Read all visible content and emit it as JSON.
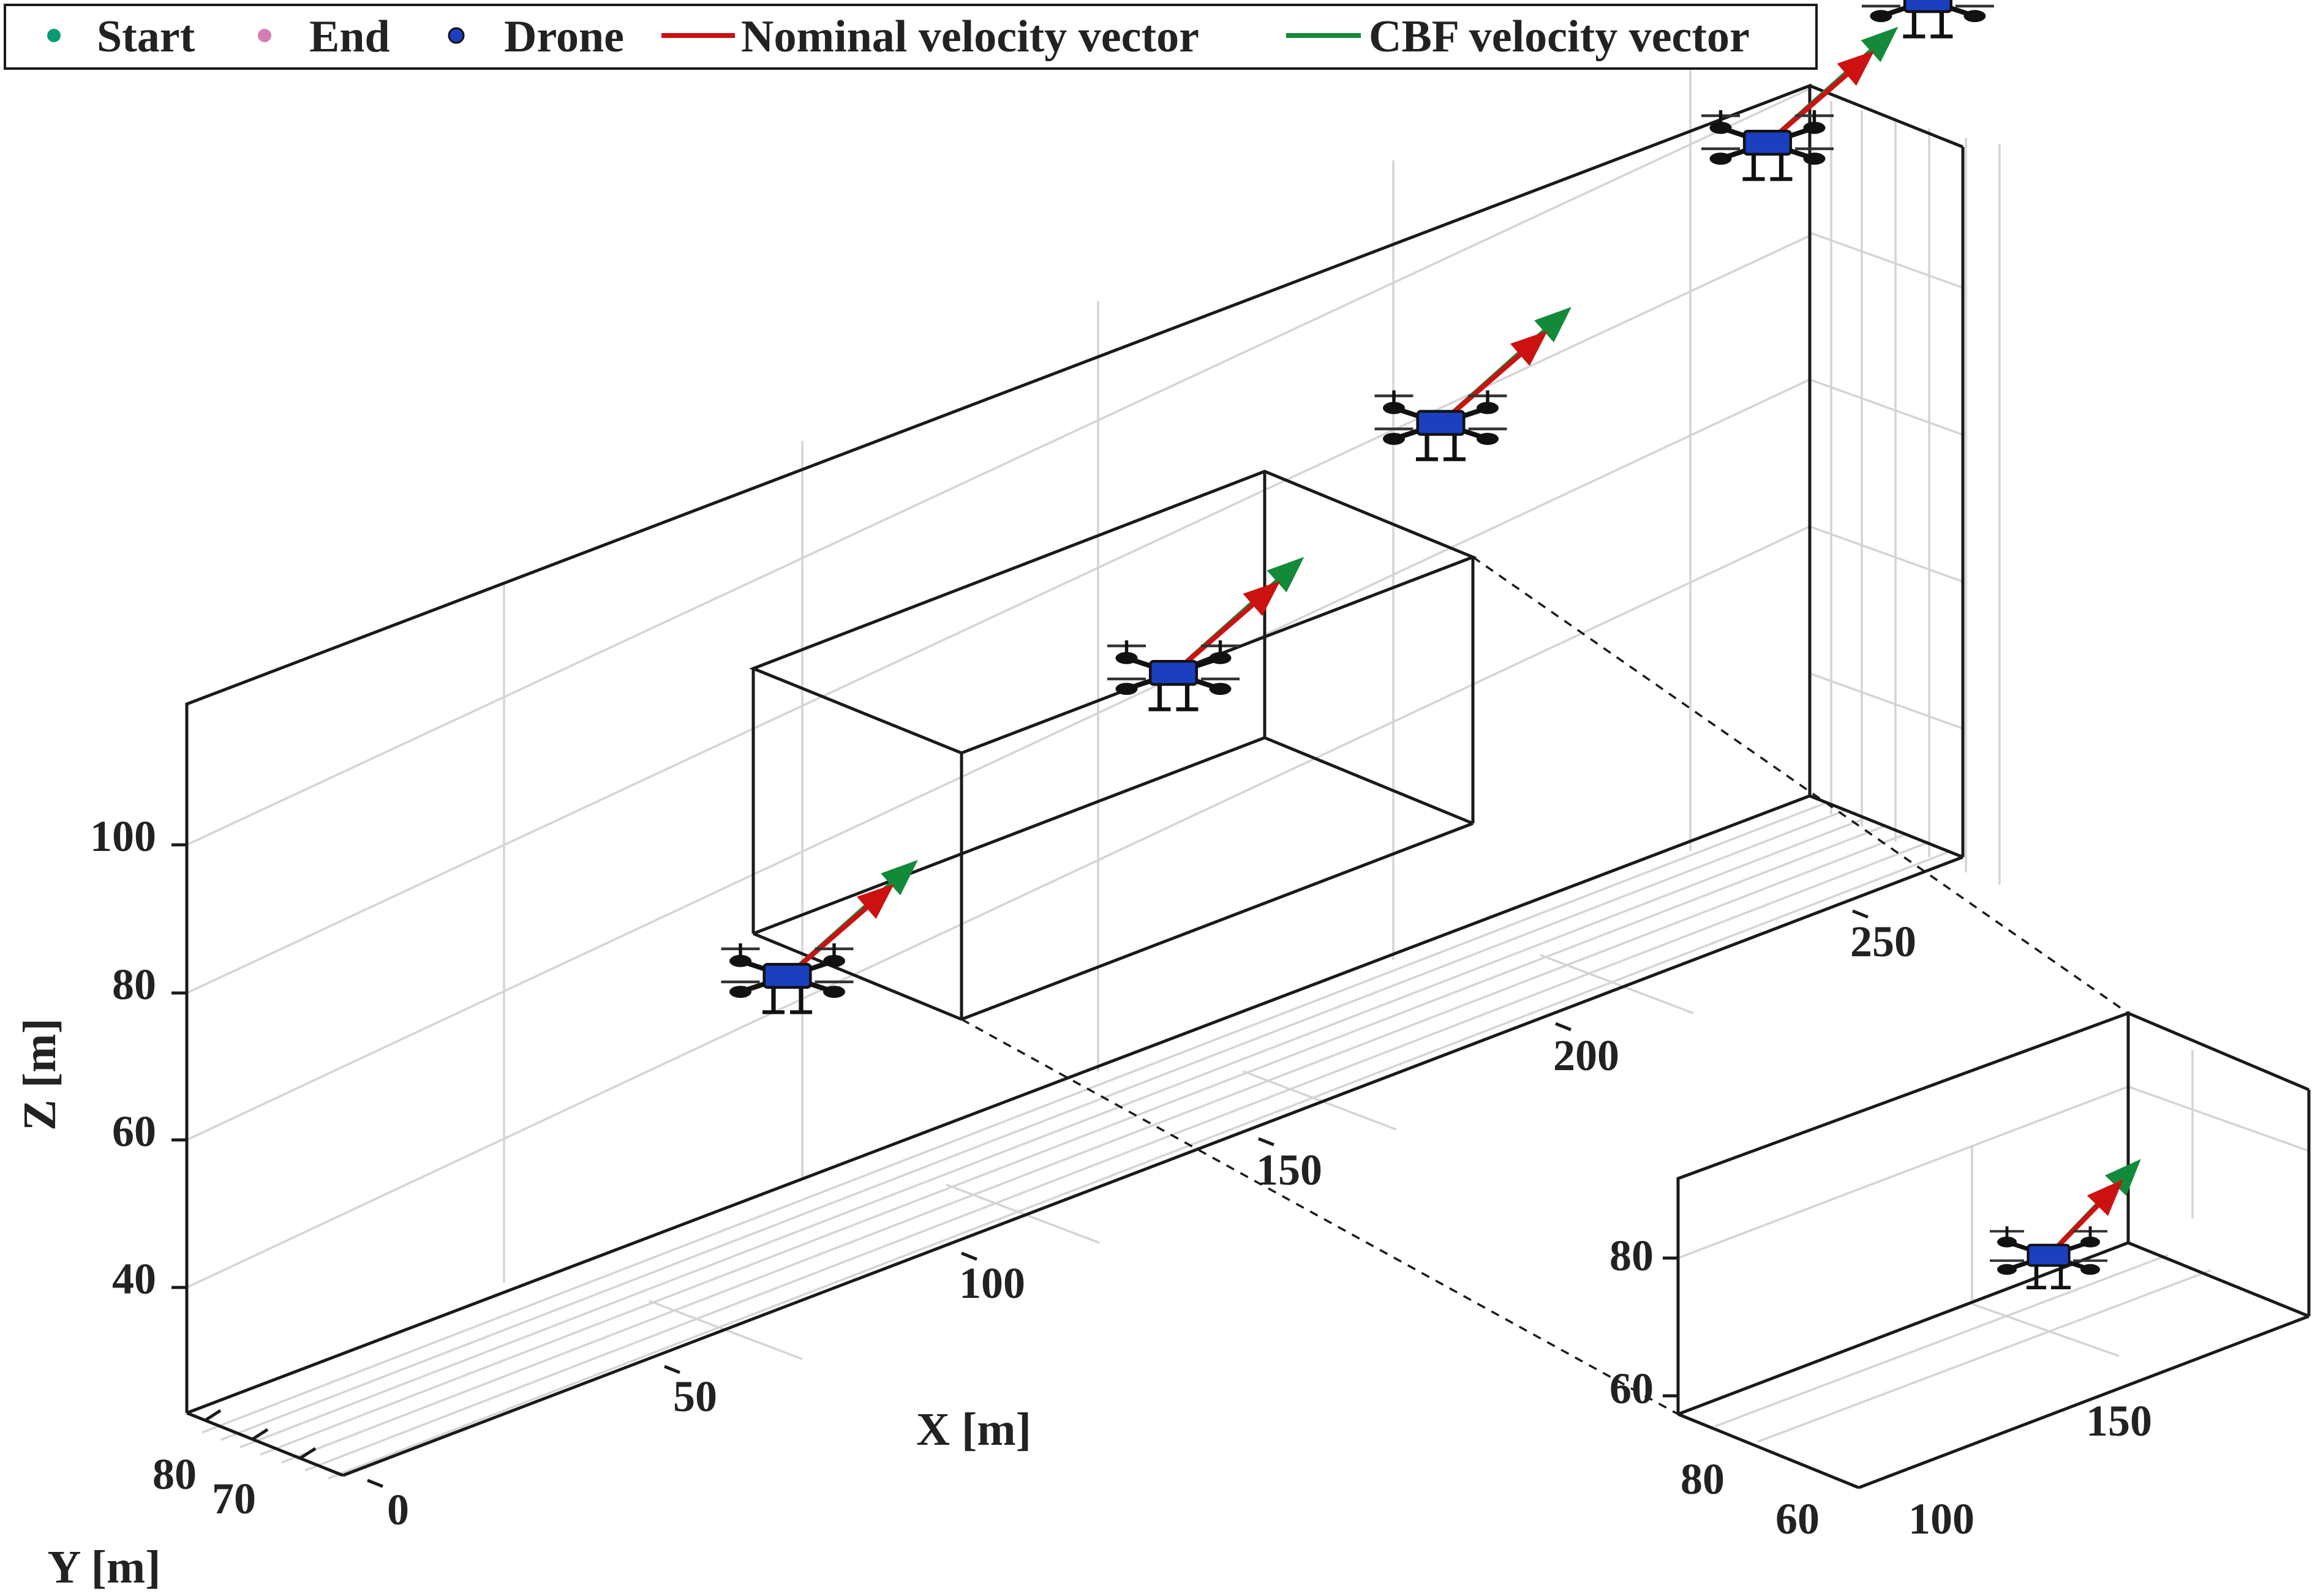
{
  "legend": {
    "items": [
      {
        "label": "Start",
        "marker": "dot",
        "color": "#0c9a72"
      },
      {
        "label": "End",
        "marker": "dot",
        "color": "#d17fb4"
      },
      {
        "label": "Drone",
        "marker": "dot",
        "color": "#1b3fbf"
      },
      {
        "label": "Nominal velocity vector",
        "marker": "line",
        "color": "#cc1111"
      },
      {
        "label": "CBF velocity vector",
        "marker": "line",
        "color": "#138a3a"
      }
    ]
  },
  "chart_data": [
    {
      "type": "scatter",
      "view": "3d",
      "xlabel": "X [m]",
      "ylabel": "Y [m]",
      "zlabel": "Z [m]",
      "x_ticks": [
        "0",
        "50",
        "100",
        "150",
        "200",
        "250"
      ],
      "y_ticks": [
        "80",
        "70"
      ],
      "z_ticks": [
        "40",
        "60",
        "80",
        "100"
      ],
      "grid": true,
      "legend_position": "top-left",
      "series": [
        {
          "name": "Drone",
          "color": "#1b3fbf",
          "points": [
            {
              "x": 65,
              "y": 75,
              "z": 66
            },
            {
              "x": 130,
              "y": 75,
              "z": 87
            },
            {
              "x": 175,
              "y": 75,
              "z": 107
            },
            {
              "x": 230,
              "y": 75,
              "z": 128
            },
            {
              "x": 257,
              "y": 75,
              "z": 139
            }
          ]
        },
        {
          "name": "Nominal velocity vector",
          "color": "#cc1111",
          "vectors": [
            {
              "x": 65,
              "y": 75,
              "z": 66,
              "u": 18,
              "w": 7
            },
            {
              "x": 130,
              "y": 75,
              "z": 87,
              "u": 18,
              "w": 7
            },
            {
              "x": 175,
              "y": 75,
              "z": 107,
              "u": 18,
              "w": 7
            },
            {
              "x": 230,
              "y": 75,
              "z": 128,
              "u": 18,
              "w": 7
            }
          ]
        },
        {
          "name": "CBF velocity vector",
          "color": "#138a3a",
          "vectors": [
            {
              "x": 65,
              "y": 75,
              "z": 66,
              "u": 22,
              "w": 9
            },
            {
              "x": 130,
              "y": 75,
              "z": 87,
              "u": 22,
              "w": 9
            },
            {
              "x": 175,
              "y": 75,
              "z": 107,
              "u": 22,
              "w": 9
            },
            {
              "x": 230,
              "y": 75,
              "z": 128,
              "u": 22,
              "w": 9
            },
            {
              "x": 257,
              "y": 75,
              "z": 139,
              "u": 12,
              "w": 4
            }
          ]
        }
      ]
    },
    {
      "type": "scatter",
      "view": "3d inset",
      "x_ticks": [
        "100",
        "150"
      ],
      "y_ticks": [
        "80",
        "60"
      ],
      "z_ticks": [
        "60",
        "80"
      ],
      "grid": true,
      "series": [
        {
          "name": "Drone",
          "color": "#1b3fbf",
          "points": [
            {
              "x": 125,
              "y": 75,
              "z": 79
            }
          ]
        }
      ]
    }
  ]
}
